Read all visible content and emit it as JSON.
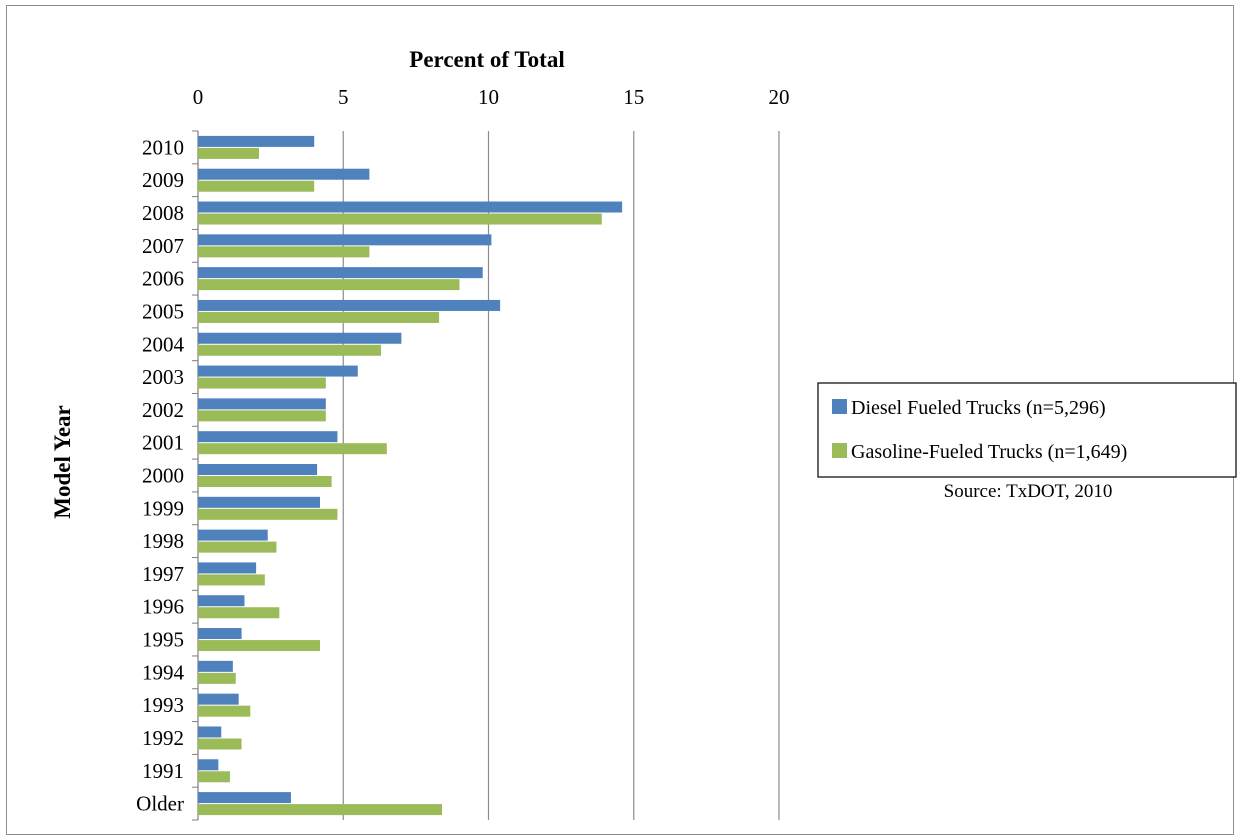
{
  "chart_data": {
    "type": "bar",
    "orientation": "horizontal",
    "xlabel": "Percent of Total",
    "ylabel": "Model Year",
    "xlim": [
      0,
      20
    ],
    "xticks": [
      "0",
      "5",
      "10",
      "15",
      "20"
    ],
    "categories": [
      "2010",
      "2009",
      "2008",
      "2007",
      "2006",
      "2005",
      "2004",
      "2003",
      "2002",
      "2001",
      "2000",
      "1999",
      "1998",
      "1997",
      "1996",
      "1995",
      "1994",
      "1993",
      "1992",
      "1991",
      "Older"
    ],
    "series": [
      {
        "name": "Diesel Fueled Trucks (n=5,296)",
        "color": "#4f81bd",
        "values": [
          4.0,
          5.9,
          14.6,
          10.1,
          9.8,
          10.4,
          7.0,
          5.5,
          4.4,
          4.8,
          4.1,
          4.2,
          2.4,
          2.0,
          1.6,
          1.5,
          1.2,
          1.4,
          0.8,
          0.7,
          3.2
        ]
      },
      {
        "name": "Gasoline-Fueled Trucks (n=1,649)",
        "color": "#9bbb59",
        "values": [
          2.1,
          4.0,
          13.9,
          5.9,
          9.0,
          8.3,
          6.3,
          4.4,
          4.4,
          6.5,
          4.6,
          4.8,
          2.7,
          2.3,
          2.8,
          4.2,
          1.3,
          1.8,
          1.5,
          1.1,
          8.4
        ]
      }
    ],
    "grid": "vertical",
    "legend_position": "right",
    "source": "Source: TxDOT, 2010"
  }
}
